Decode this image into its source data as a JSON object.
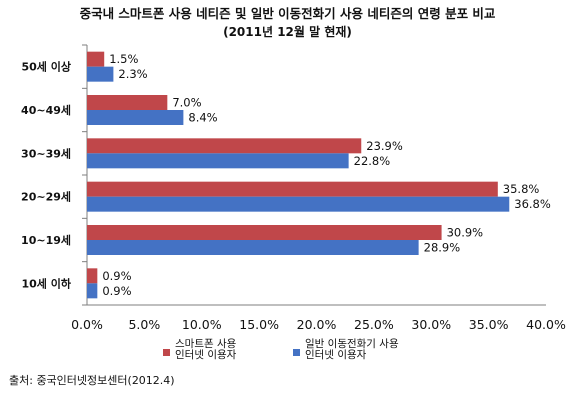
{
  "chart_data": {
    "type": "bar",
    "orientation": "horizontal",
    "title": "중국내 스마트폰 사용 네티즌 및 일반 이동전화기 사용 네티즌의 연령 분포 비교",
    "subtitle": "(2011년 12월 말 현재)",
    "categories": [
      "50세 이상",
      "40~49세",
      "30~39세",
      "20~29세",
      "10~19세",
      "10세 이하"
    ],
    "series": [
      {
        "name_lines": [
          "스마트폰 사용",
          "인터넷 이용자"
        ],
        "color": "#c0474a",
        "values": [
          1.5,
          7.0,
          23.9,
          35.8,
          30.9,
          0.9
        ],
        "labels": [
          "1.5%",
          "7.0%",
          "23.9%",
          "35.8%",
          "30.9%",
          "0.9%"
        ]
      },
      {
        "name_lines": [
          "일반 이동전화기 사용",
          "인터넷 이용자"
        ],
        "color": "#4472c4",
        "values": [
          2.3,
          8.4,
          22.8,
          36.8,
          28.9,
          0.9
        ],
        "labels": [
          "2.3%",
          "8.4%",
          "22.8%",
          "36.8%",
          "28.9%",
          "0.9%"
        ]
      }
    ],
    "xlim": [
      0,
      40
    ],
    "x_ticks": [
      "0.0%",
      "5.0%",
      "10.0%",
      "15.0%",
      "20.0%",
      "25.0%",
      "30.0%",
      "35.0%",
      "40.0%"
    ],
    "grid": false,
    "legend": "bottom"
  },
  "source": "출처: 중국인터넷정보센터(2012.4)"
}
